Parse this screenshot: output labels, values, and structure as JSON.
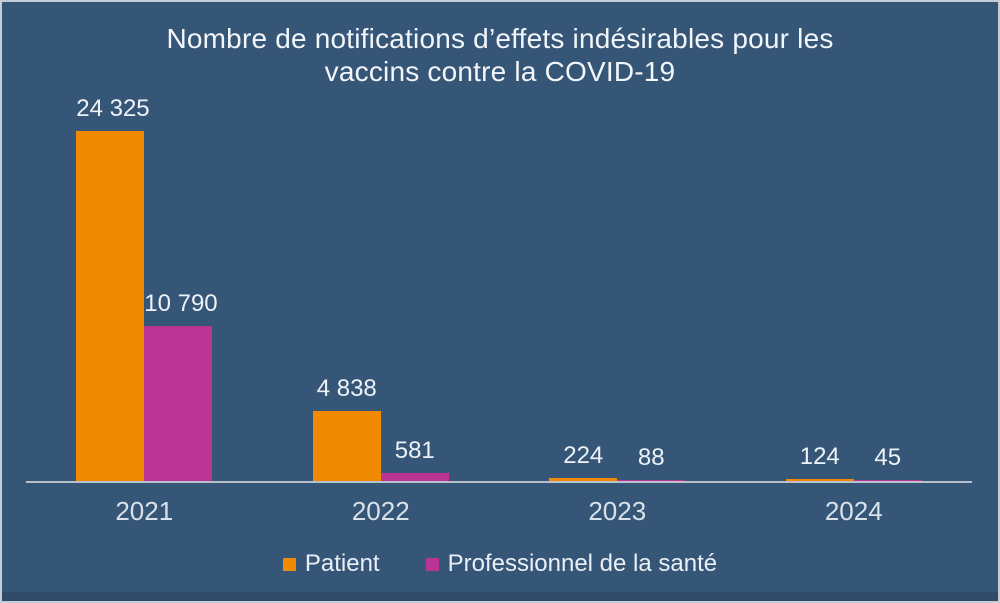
{
  "title_lines": {
    "line1": "Nombre de notifications d’effets indésirables pour les",
    "line2": "vaccins contre la COVID-19"
  },
  "chart_data": {
    "type": "bar",
    "title": "Nombre de notifications d’effets indésirables pour les vaccins contre la COVID-19",
    "categories": [
      "2021",
      "2022",
      "2023",
      "2024"
    ],
    "series": [
      {
        "name": "Patient",
        "color": "#f18a03",
        "values": [
          24325,
          4838,
          224,
          124
        ],
        "labels": [
          "24 325",
          "4 838",
          "224",
          "124"
        ]
      },
      {
        "name": "Professionnel de la santé",
        "color": "#ba3493",
        "values": [
          10790,
          581,
          88,
          45
        ],
        "labels": [
          "10 790",
          "581",
          "88",
          "45"
        ]
      }
    ],
    "xlabel": "",
    "ylabel": "",
    "ylim": [
      0,
      24325
    ],
    "grid": false,
    "y_axis_visible": false,
    "legend_position": "bottom"
  },
  "legend": {
    "items": [
      {
        "label": "Patient",
        "color": "#f18a03"
      },
      {
        "label": "Professionnel de la santé",
        "color": "#ba3493"
      }
    ]
  },
  "colors": {
    "background": "#365677",
    "border": "#c6cdd7",
    "axis_line": "#b9c0cb",
    "title_text": "#f2f6fa",
    "value_text": "#edf2f7",
    "axis_text": "#d9e1eb",
    "bottom_strip": "#2e4a66"
  }
}
